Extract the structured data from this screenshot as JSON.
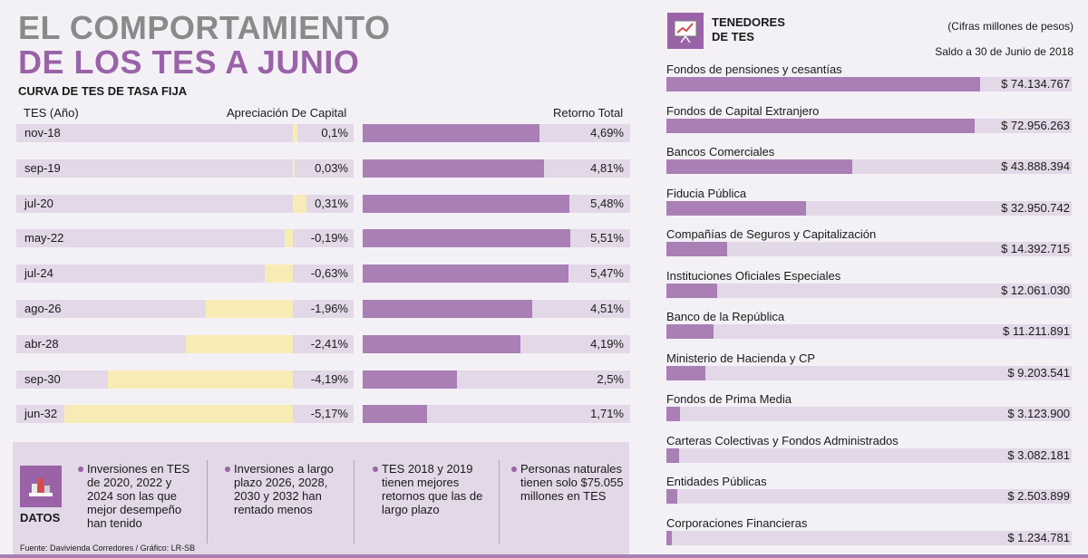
{
  "header": {
    "title_line1": "EL COMPORTAMIENTO",
    "title_line2": "DE LOS TES A JUNIO"
  },
  "chart_data": [
    {
      "type": "bar",
      "title": "CURVA DE TES DE TASA FIJA",
      "category_header": "TES (Año)",
      "categories": [
        "nov-18",
        "sep-19",
        "jul-20",
        "may-22",
        "jul-24",
        "ago-26",
        "abr-28",
        "sep-30",
        "jun-32"
      ],
      "series": [
        {
          "name": "Apreciación De Capital",
          "values": [
            0.1,
            0.03,
            0.31,
            -0.19,
            -0.63,
            -1.96,
            -2.41,
            -4.19,
            -5.17
          ],
          "labels": [
            "0,1%",
            "0,03%",
            "0,31%",
            "-0,19%",
            "-0,63%",
            "-1,96%",
            "-2,41%",
            "-4,19%",
            "-5,17%"
          ],
          "color": "#f8ecb6"
        },
        {
          "name": "Retorno Total",
          "values": [
            4.69,
            4.81,
            5.48,
            5.51,
            5.47,
            4.51,
            4.19,
            2.5,
            1.71
          ],
          "labels": [
            "4,69%",
            "4,81%",
            "5,48%",
            "5,51%",
            "5,47%",
            "4,51%",
            "4,19%",
            "2,5%",
            "1,71%"
          ],
          "color": "#a97fb5"
        }
      ]
    },
    {
      "type": "bar",
      "title": "TENEDORES DE TES",
      "title_line1": "TENEDORES",
      "title_line2": "DE TES",
      "unit_note": "(Cifras millones de pesos)",
      "date_note": "Saldo a 30 de Junio de 2018",
      "categories": [
        "Fondos de pensiones y cesantías",
        "Fondos de Capital Extranjero",
        "Bancos Comerciales",
        "Fiducia Pública",
        "Compañías de Seguros y Capitalización",
        "Instituciones Oficiales Especiales",
        "Banco de la República",
        "Ministerio de Hacienda y CP",
        "Fondos de Prima Media",
        "Carteras Colectivas y Fondos Administrados",
        "Entidades Públicas",
        "Corporaciones Financieras"
      ],
      "values": [
        74134767,
        72956263,
        43888394,
        32950742,
        14392715,
        12061030,
        11211891,
        9203541,
        3123900,
        3082181,
        2503899,
        1234781
      ],
      "labels": [
        "$ 74.134.767",
        "$ 72.956.263",
        "$ 43.888.394",
        "$ 32.950.742",
        "$ 14.392.715",
        "$ 12.061.030",
        "$ 11.211.891",
        "$ 9.203.541",
        "$ 3.123.900",
        "$ 3.082.181",
        "$ 2.503.899",
        "$ 1.234.781"
      ],
      "color": "#a97fb5"
    }
  ],
  "datos": {
    "label": "DATOS",
    "facts": [
      "Inversiones en TES de 2020, 2022 y 2024 son las que mejor desempeño han tenido",
      "Inversiones a largo plazo 2026, 2028, 2030 y 2032 han rentado menos",
      "TES 2018 y 2019 tienen mejores retornos que las de largo plazo",
      "Personas naturales tienen solo $75.055 millones en TES"
    ]
  },
  "source": "Fuente: Davivienda Corredores / Gráfico: LR-SB",
  "colors": {
    "accent": "#9a63a8",
    "bar": "#a97fb5",
    "appreciation": "#f8ecb6",
    "track": "#e2d8e8",
    "title_gray": "#8a8a8a"
  }
}
